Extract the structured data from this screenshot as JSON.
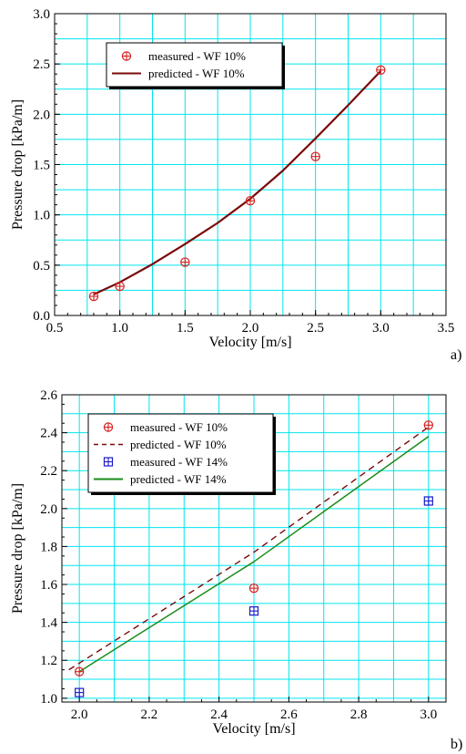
{
  "chart_data": [
    {
      "type": "line",
      "panel_label": "a)",
      "xlabel": "Velocity [m/s]",
      "ylabel": "Pressure drop [kPa/m]",
      "xlim": [
        0.5,
        3.5
      ],
      "ylim": [
        0.0,
        3.0
      ],
      "x_ticks": [
        "0.5",
        "1.0",
        "1.5",
        "2.0",
        "2.5",
        "3.0",
        "3.5"
      ],
      "y_ticks": [
        "0.0",
        "0.5",
        "1.0",
        "1.5",
        "2.0",
        "2.5",
        "3.0"
      ],
      "grid": true,
      "grid_color": "#00e5ee",
      "legend_position": "top-left",
      "series": [
        {
          "name": "measured  - WF 10%",
          "kind": "markers",
          "marker": "circle-plus",
          "color": "#d62020",
          "x": [
            0.8,
            1.0,
            1.5,
            2.0,
            2.5,
            3.0
          ],
          "y": [
            0.19,
            0.29,
            0.53,
            1.14,
            1.58,
            2.44
          ]
        },
        {
          "name": "predicted  - WF 10%",
          "kind": "line",
          "style": "solid",
          "color": "#7a0a0a",
          "x": [
            0.8,
            1.0,
            1.25,
            1.5,
            1.75,
            2.0,
            2.25,
            2.5,
            2.75,
            3.0
          ],
          "y": [
            0.21,
            0.33,
            0.51,
            0.71,
            0.92,
            1.16,
            1.44,
            1.76,
            2.09,
            2.43
          ]
        }
      ]
    },
    {
      "type": "line",
      "panel_label": "b)",
      "xlabel": "Velocity [m/s]",
      "ylabel": "Pressure drop [kPa/m]",
      "xlim": [
        1.95,
        3.05
      ],
      "ylim": [
        0.98,
        2.6
      ],
      "x_ticks": [
        "2.0",
        "2.2",
        "2.4",
        "2.6",
        "2.8",
        "3.0"
      ],
      "y_ticks": [
        "1.0",
        "1.2",
        "1.4",
        "1.6",
        "1.8",
        "2.0",
        "2.2",
        "2.4",
        "2.6"
      ],
      "grid": true,
      "grid_color": "#00e5ee",
      "legend_position": "top-left",
      "series": [
        {
          "name": "measured  - WF 10%",
          "kind": "markers",
          "marker": "circle-plus",
          "color": "#d62020",
          "x": [
            2.0,
            2.5,
            3.0
          ],
          "y": [
            1.14,
            1.58,
            2.44
          ]
        },
        {
          "name": "predicted  - WF 10%",
          "kind": "line",
          "style": "dashed",
          "color": "#7a0a0a",
          "x": [
            1.97,
            2.5,
            3.0
          ],
          "y": [
            1.15,
            1.77,
            2.43
          ]
        },
        {
          "name": "measured  - WF 14%",
          "kind": "markers",
          "marker": "square-plus",
          "color": "#1a1acc",
          "x": [
            2.0,
            2.5,
            3.0
          ],
          "y": [
            1.03,
            1.46,
            2.04
          ]
        },
        {
          "name": "predicted  - WF 14%",
          "kind": "line",
          "style": "solid",
          "color": "#1a8c1a",
          "x": [
            2.0,
            2.5,
            3.0
          ],
          "y": [
            1.14,
            1.72,
            2.38
          ]
        }
      ]
    }
  ]
}
